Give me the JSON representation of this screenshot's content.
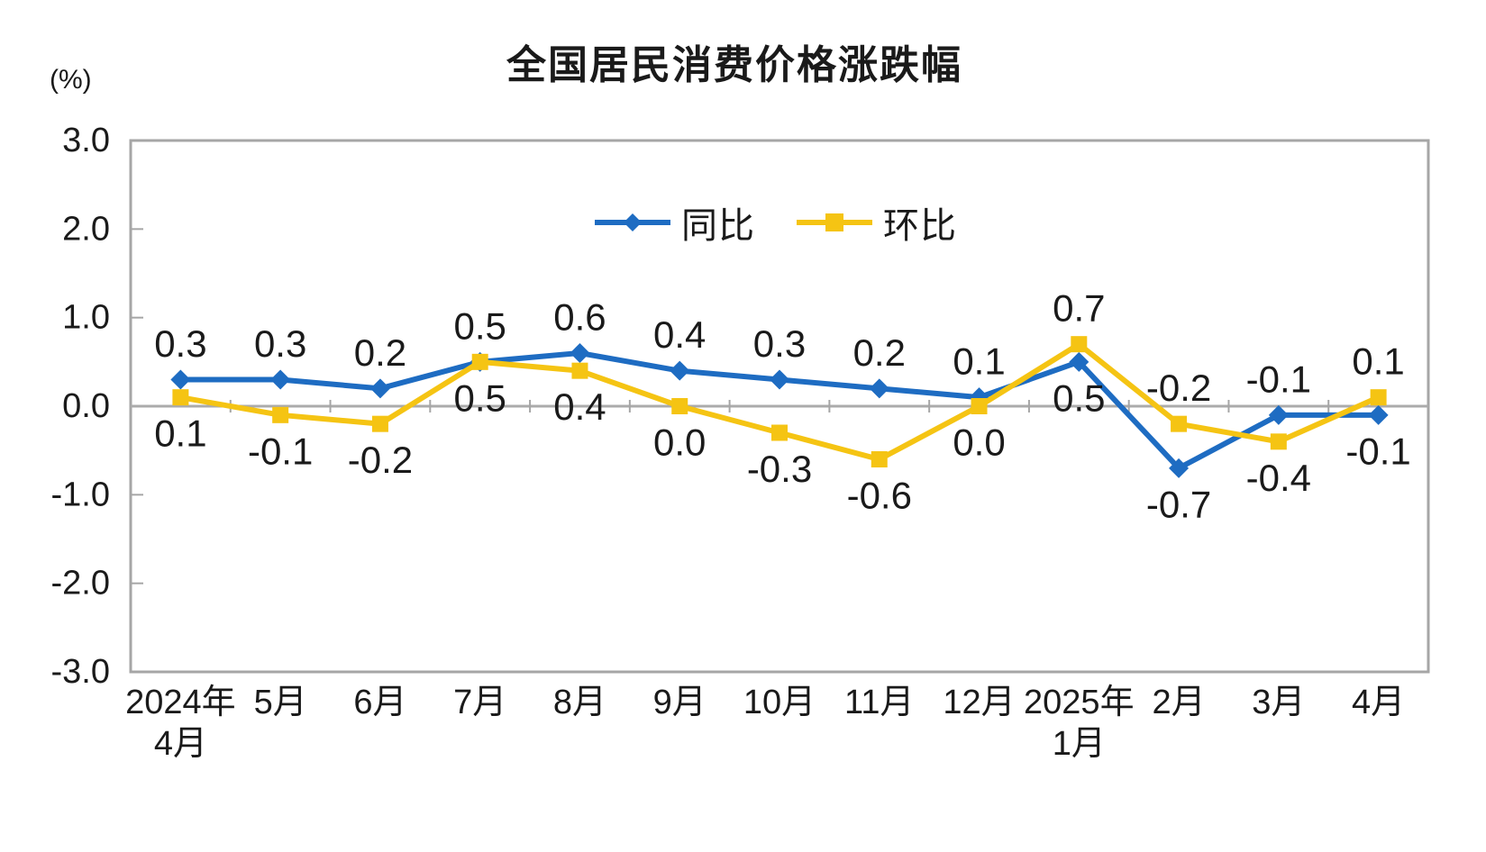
{
  "chart": {
    "title": "全国居民消费价格涨跌幅",
    "unit_label": "(%)"
  },
  "chart_data": {
    "type": "line",
    "title": "全国居民消费价格涨跌幅",
    "ylabel": "(%)",
    "xlabel": "",
    "categories": [
      "2024年\n4月",
      "5月",
      "6月",
      "7月",
      "8月",
      "9月",
      "10月",
      "11月",
      "12月",
      "2025年\n1月",
      "2月",
      "3月",
      "4月"
    ],
    "series": [
      {
        "name": "同比",
        "marker": "diamond",
        "color": "#1E6CC2",
        "values": [
          0.3,
          0.3,
          0.2,
          0.5,
          0.6,
          0.4,
          0.3,
          0.2,
          0.1,
          0.5,
          -0.7,
          -0.1,
          -0.1
        ],
        "label_side": [
          "above",
          "above",
          "above",
          "above",
          "above",
          "above",
          "above",
          "above",
          "above",
          "below",
          "below",
          "above",
          "below"
        ]
      },
      {
        "name": "环比",
        "marker": "square",
        "color": "#F5C413",
        "values": [
          0.1,
          -0.1,
          -0.2,
          0.5,
          0.4,
          0.0,
          -0.3,
          -0.6,
          0.0,
          0.7,
          -0.2,
          -0.4,
          0.1
        ],
        "label_side": [
          "below",
          "below",
          "below",
          "below",
          "below",
          "below",
          "below",
          "below",
          "below",
          "above",
          "above",
          "below",
          "above"
        ]
      }
    ],
    "y_ticks": [
      3.0,
      2.0,
      1.0,
      0.0,
      -1.0,
      -2.0,
      -3.0
    ],
    "ylim": [
      -3.0,
      3.0
    ],
    "grid": "zero-line-only",
    "data_labels": true,
    "data_label_decimals": 1,
    "legend_position": "top-center-inside",
    "colors": {
      "border": "#A6A6A6",
      "zero_line": "#ABABAB",
      "tick": "#A6A6A6",
      "text": "#1A1A1A"
    }
  }
}
